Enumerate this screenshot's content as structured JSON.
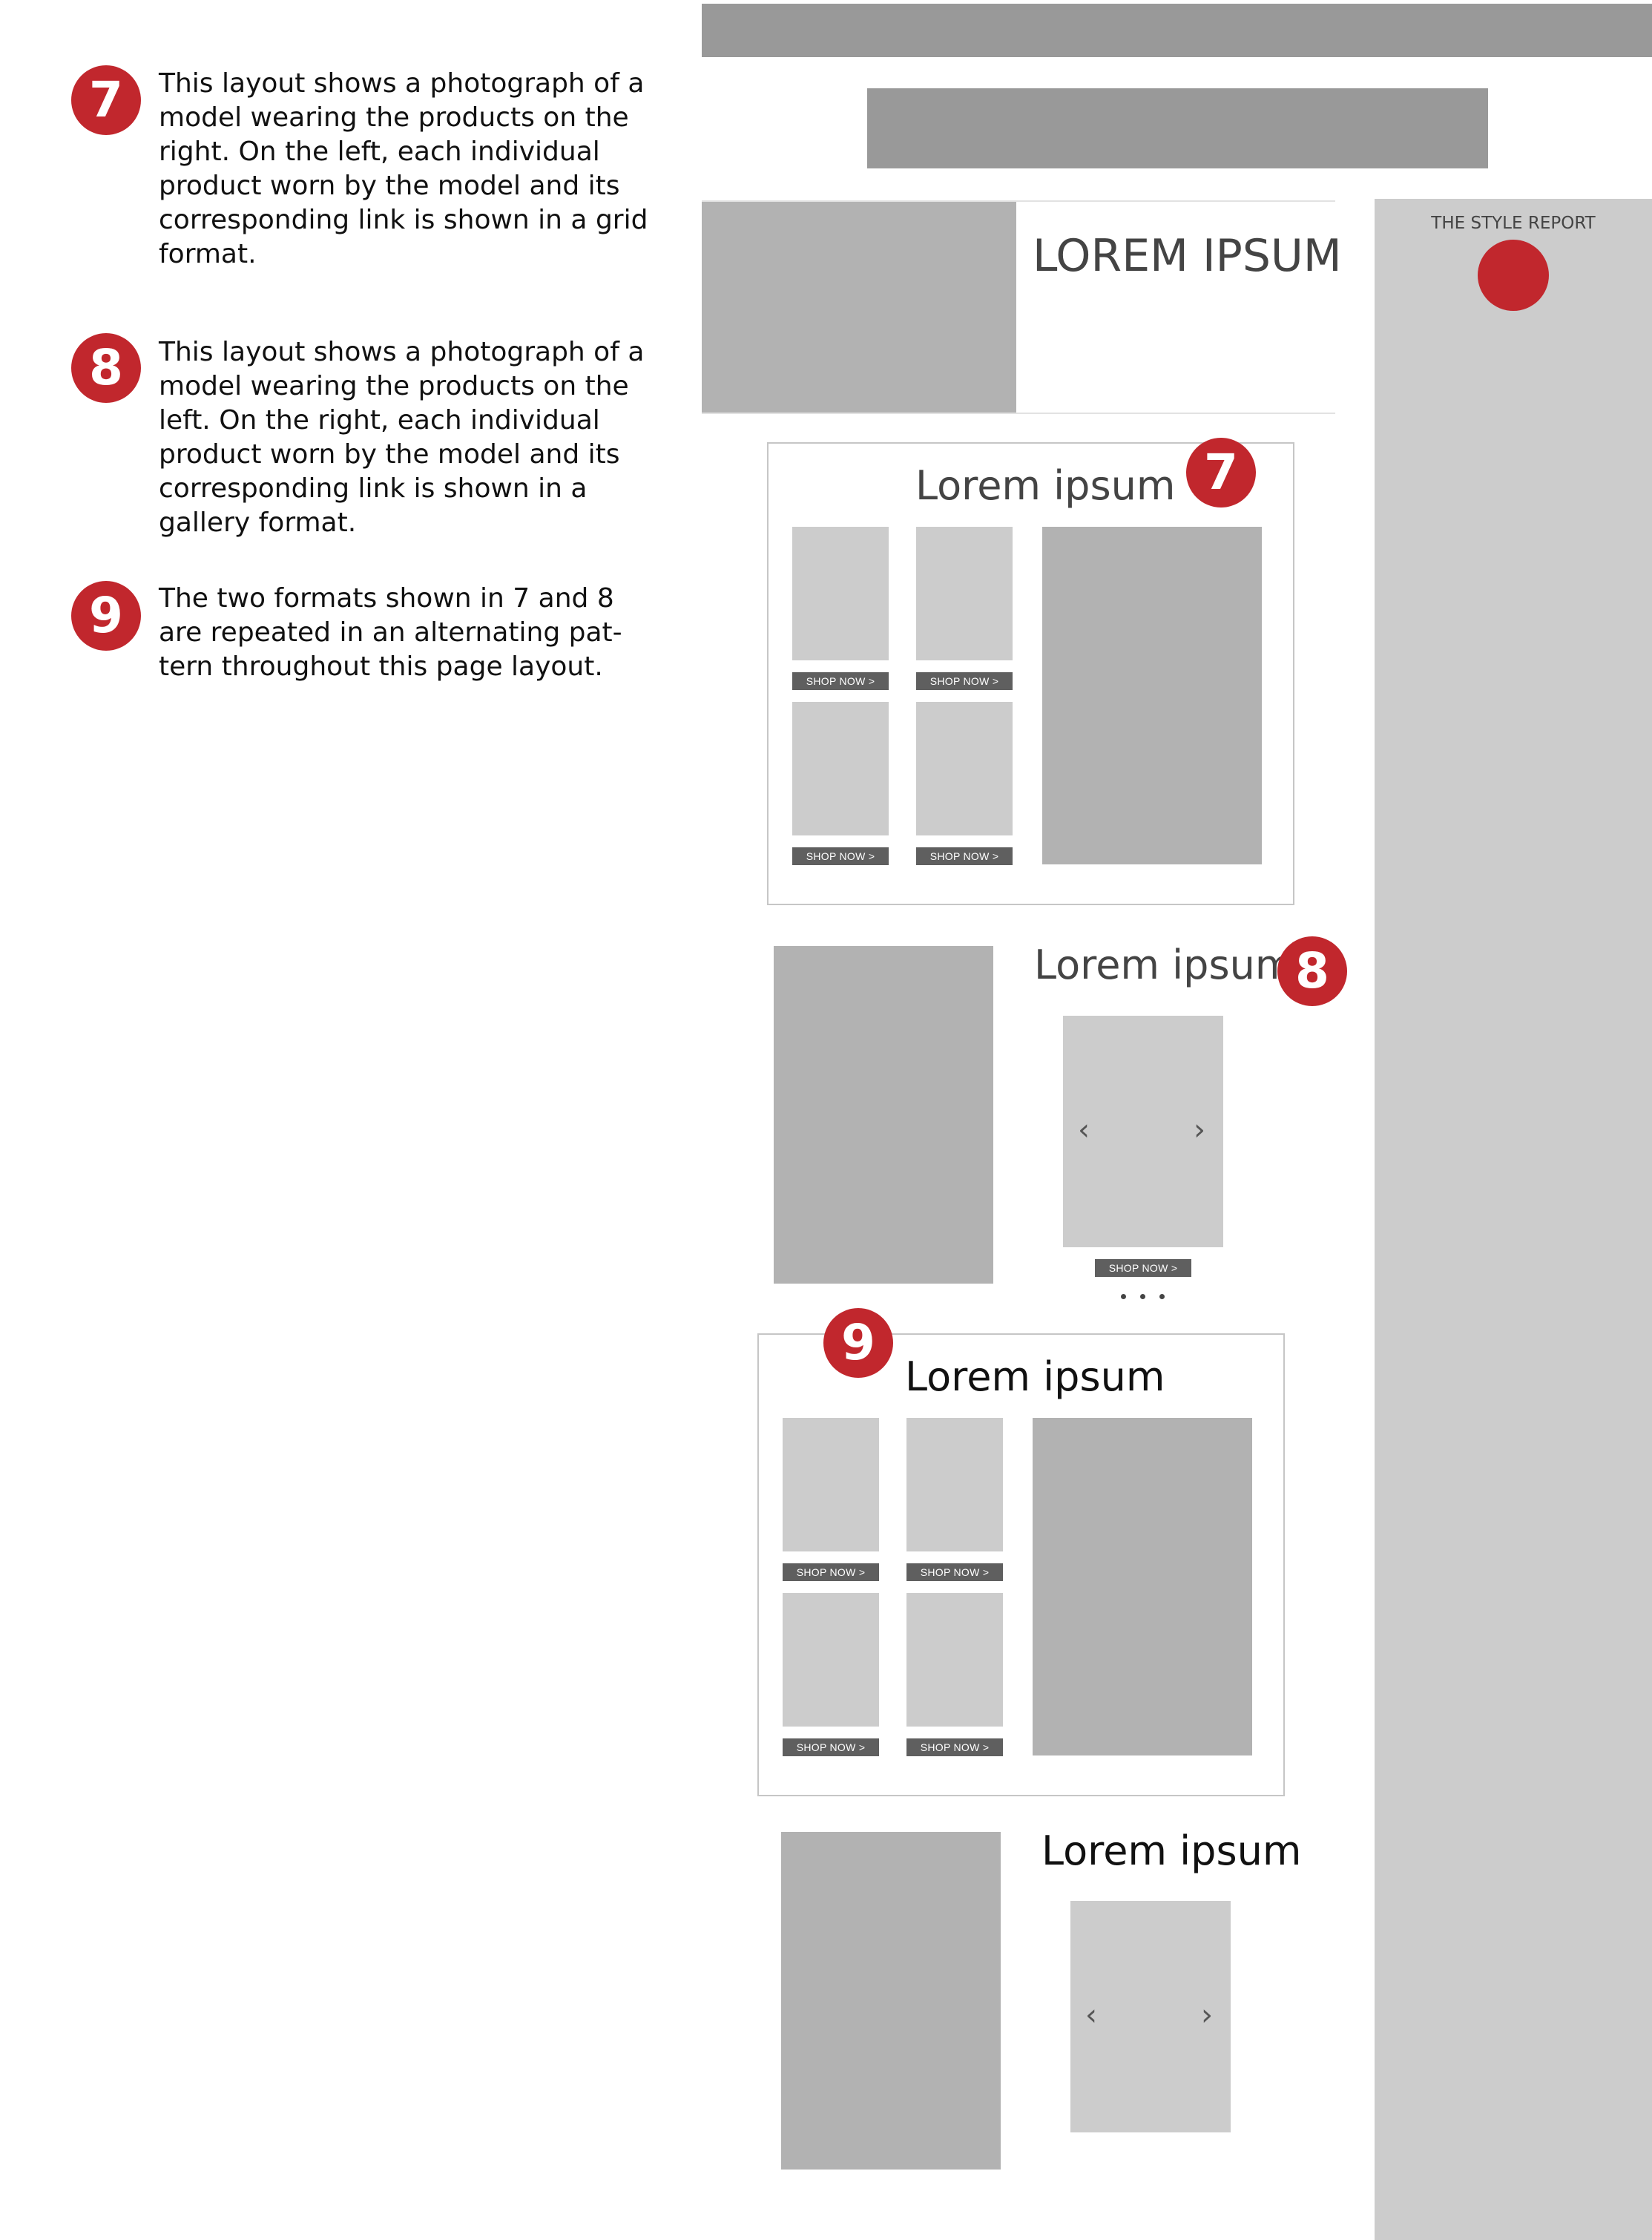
{
  "annotations": [
    {
      "number": "7",
      "text": "This layout shows a photograph of a model wearing the products on the right. On the left, each individual product worn by the model and its corresponding link is shown in a grid format."
    },
    {
      "number": "8",
      "text": "This layout shows a photograph of a model wearing the products on the left. On the right, each individual product worn by the model and its corresponding link is shown in a gallery format."
    },
    {
      "number": "9",
      "text": "The two formats shown in 7 and 8 are repeated in an alternating pat-tern throughout this page layout."
    }
  ],
  "sidebar": {
    "label": "THE STYLE REPORT"
  },
  "hero": {
    "title": "LOREM IPSUM"
  },
  "sections": [
    {
      "title": "Lorem ipsum",
      "badge": "7",
      "shop_labels": [
        "SHOP NOW >",
        "SHOP NOW >",
        "SHOP NOW >",
        "SHOP NOW >"
      ]
    },
    {
      "title": "Lorem ipsum",
      "badge": "8",
      "shop_label": "SHOP NOW >",
      "prev_icon": "‹",
      "next_icon": "›"
    },
    {
      "title": "Lorem ipsum",
      "badge": "9",
      "shop_labels": [
        "SHOP NOW >",
        "SHOP NOW >",
        "SHOP NOW >",
        "SHOP NOW >"
      ]
    },
    {
      "title": "Lorem ipsum",
      "prev_icon": "‹",
      "next_icon": "›"
    }
  ],
  "colors": {
    "accent": "#c1272d",
    "bar": "#999999",
    "image_dark": "#b2b2b2",
    "image_light": "#cccccc",
    "button": "#5f5f5f"
  }
}
